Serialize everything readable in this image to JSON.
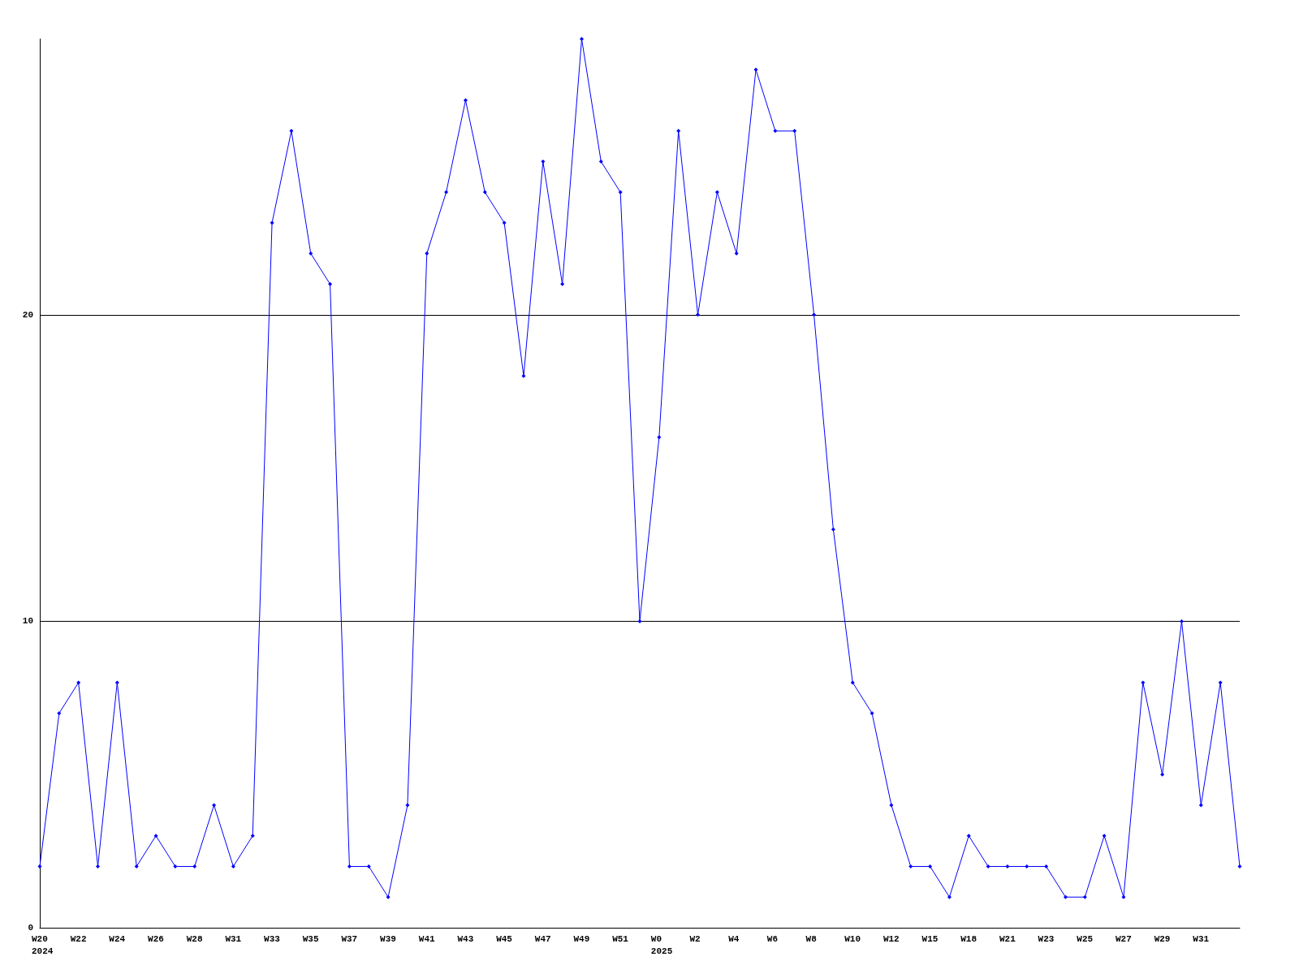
{
  "chart_data": {
    "type": "line",
    "categories": [
      "W20\n2024",
      null,
      "W22",
      null,
      "W24",
      null,
      "W26",
      null,
      "W28",
      null,
      "W31",
      null,
      "W33",
      null,
      "W35",
      null,
      "W37",
      null,
      "W39",
      null,
      "W41",
      null,
      "W43",
      null,
      "W45",
      null,
      "W47",
      null,
      "W49",
      null,
      "W51",
      null,
      "W0\n2025",
      null,
      "W2",
      null,
      "W4",
      null,
      "W6",
      null,
      "W8",
      null,
      "W10",
      null,
      "W12",
      null,
      "W15",
      null,
      "W18",
      null,
      "W21",
      null,
      "W23",
      null,
      "W25",
      null,
      "W27",
      null,
      "W29",
      null,
      "W31",
      null,
      null
    ],
    "series": [
      {
        "color": "#0000ff",
        "values": [
          2,
          7,
          8,
          2,
          8,
          2,
          3,
          2,
          2,
          4,
          2,
          3,
          23,
          26,
          22,
          21,
          2,
          2,
          1,
          4,
          22,
          24,
          27,
          24,
          23,
          18,
          25,
          21,
          29,
          25,
          24,
          10,
          16,
          26,
          20,
          24,
          22,
          28,
          26,
          26,
          20,
          13,
          8,
          7,
          4,
          2,
          2,
          1,
          3,
          2,
          2,
          2,
          2,
          1,
          1,
          3,
          1,
          8,
          5,
          10,
          4,
          8,
          2
        ]
      }
    ],
    "ylim": [
      0,
      29
    ],
    "yticks": [
      0,
      10,
      20
    ],
    "grid": "y",
    "marker": "diamond",
    "line_style": "solid"
  }
}
